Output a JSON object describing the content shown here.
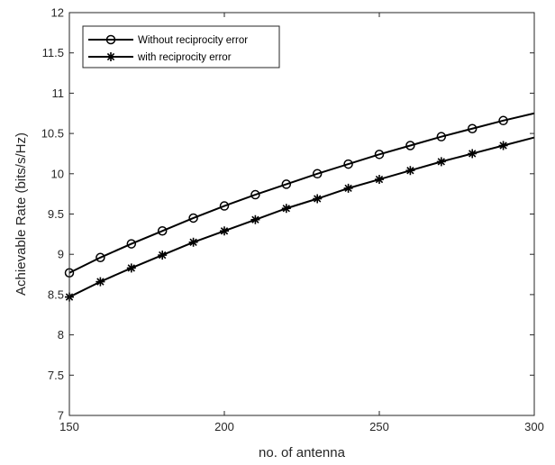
{
  "chart_data": {
    "type": "line",
    "xlabel": "no. of antenna",
    "ylabel": "Achievable Rate (bits/s/Hz)",
    "xlim": [
      150,
      300
    ],
    "ylim": [
      7,
      12
    ],
    "x_ticks": [
      "150",
      "200",
      "250",
      "300"
    ],
    "y_ticks": [
      "7",
      "7.5",
      "8",
      "8.5",
      "9",
      "9.5",
      "10",
      "10.5",
      "11",
      "11.5",
      "12"
    ],
    "grid": false,
    "legend_position": "top-left",
    "x": [
      150,
      160,
      170,
      180,
      190,
      200,
      210,
      220,
      230,
      240,
      250,
      260,
      270,
      280,
      290,
      300
    ],
    "series": [
      {
        "name": "Without reciprocity error",
        "marker": "circle",
        "color": "#000000",
        "values": [
          8.77,
          8.96,
          9.13,
          9.29,
          9.45,
          9.6,
          9.74,
          9.87,
          10.0,
          10.12,
          10.24,
          10.35,
          10.46,
          10.56,
          10.66,
          10.75
        ],
        "marker_every": [
          true,
          true,
          true,
          true,
          true,
          true,
          true,
          true,
          true,
          true,
          true,
          true,
          true,
          true,
          true,
          false
        ]
      },
      {
        "name": "with reciprocity error",
        "marker": "asterisk",
        "color": "#000000",
        "values": [
          8.47,
          8.66,
          8.83,
          8.99,
          9.15,
          9.29,
          9.43,
          9.57,
          9.69,
          9.82,
          9.93,
          10.04,
          10.15,
          10.25,
          10.35,
          10.45
        ],
        "marker_every": [
          true,
          true,
          true,
          true,
          true,
          true,
          true,
          true,
          true,
          true,
          true,
          true,
          true,
          true,
          true,
          false
        ]
      }
    ]
  }
}
